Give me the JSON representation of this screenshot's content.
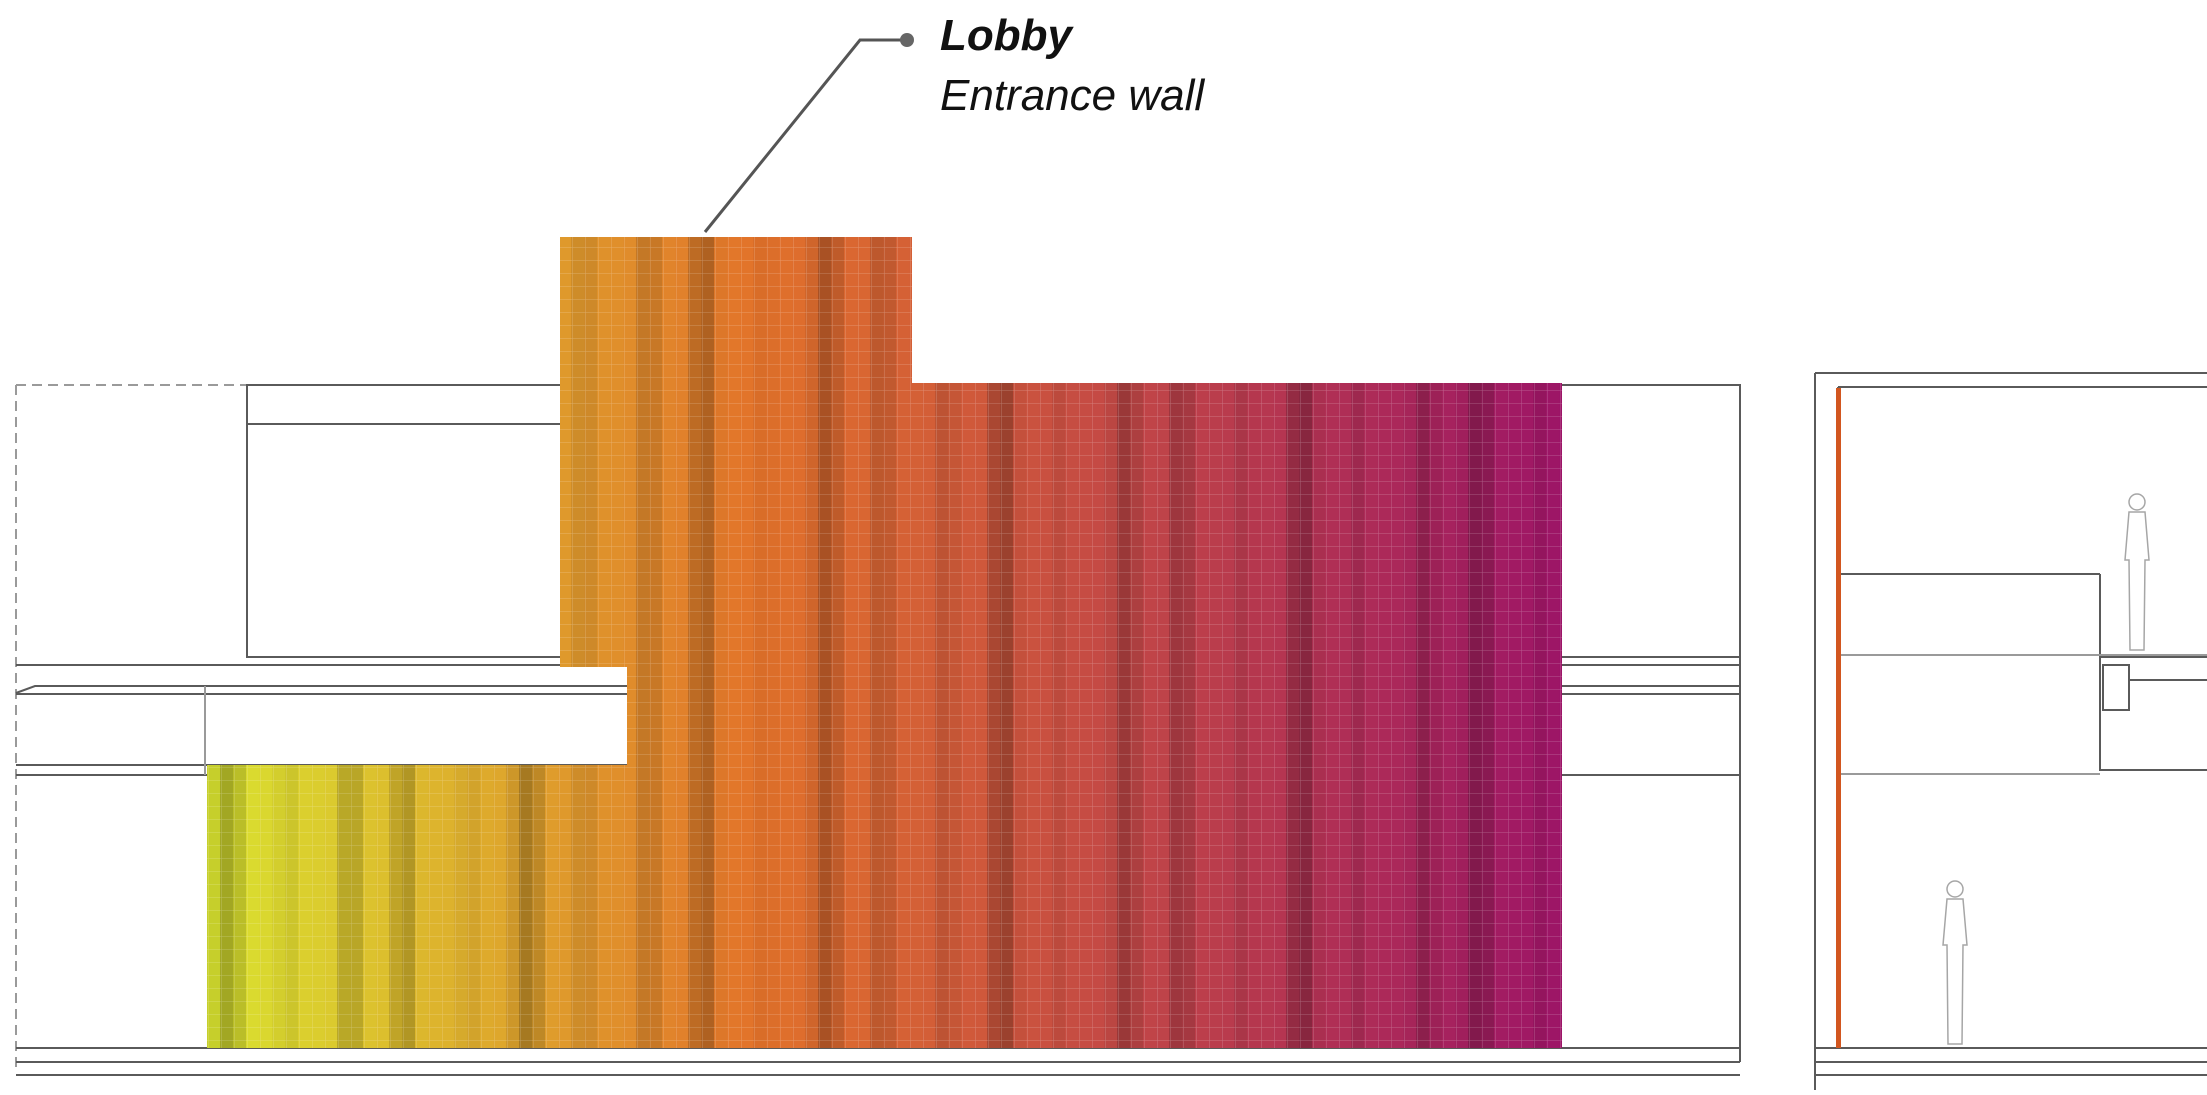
{
  "callout": {
    "title": "Lobby",
    "subtitle": "Entrance wall"
  },
  "gradient": {
    "left_color": "#d9e22f",
    "orange_color": "#e2722a",
    "right_color": "#9c1467"
  },
  "line_color": "#5a5a5a",
  "accent_strip_color": "#d2561f"
}
